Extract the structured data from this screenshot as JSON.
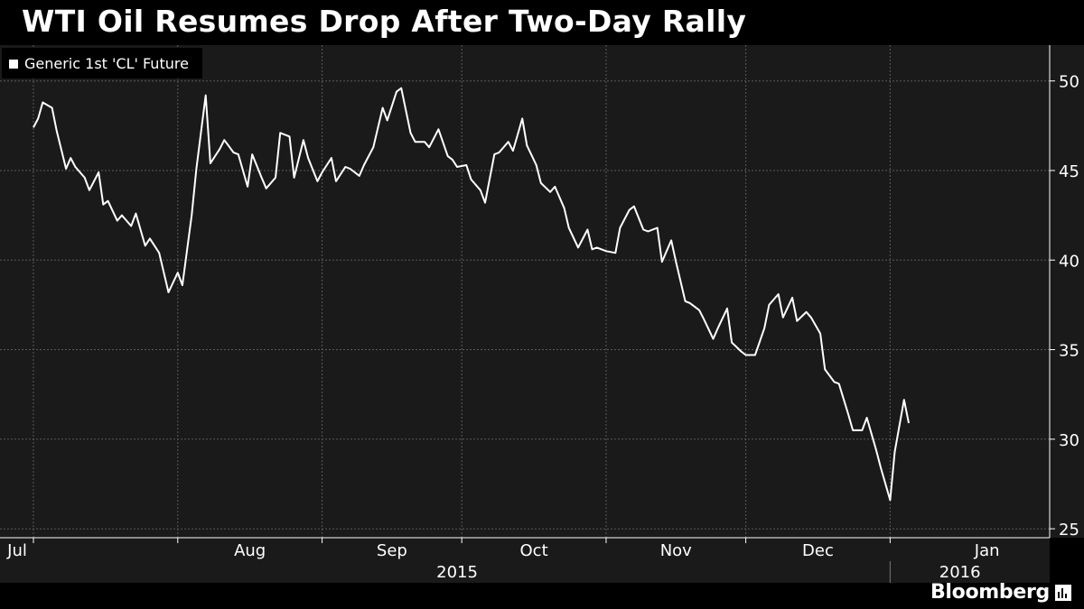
{
  "title": "WTI Oil Resumes Drop After Two-Day Rally",
  "brand": "Bloomberg",
  "colors": {
    "background": "#000000",
    "plot_background": "#1a1a1a",
    "line": "#ffffff",
    "grid": "#5a5a5a",
    "text": "#ffffff"
  },
  "chart_data": {
    "type": "line",
    "title": "WTI Oil Resumes Drop After Two-Day Rally",
    "grid": true,
    "legend_position": "top-left",
    "y_axis_position": "right",
    "ylim": [
      24.5,
      52
    ],
    "yticks": [
      25,
      30,
      35,
      40,
      45,
      50
    ],
    "xlim": [
      "2015-07-01",
      "2016-01-31"
    ],
    "x_month_ticks": [
      {
        "label": "Jul",
        "date": "2015-07-01"
      },
      {
        "label": "Aug",
        "date": "2015-08-01"
      },
      {
        "label": "Sep",
        "date": "2015-09-01"
      },
      {
        "label": "Oct",
        "date": "2015-10-01"
      },
      {
        "label": "Nov",
        "date": "2015-11-01"
      },
      {
        "label": "Dec",
        "date": "2015-12-01"
      },
      {
        "label": "Jan",
        "date": "2016-01-01"
      }
    ],
    "x_year_labels": [
      {
        "label": "2015",
        "date": "2015-09-30"
      },
      {
        "label": "2016",
        "date": "2016-01-16"
      }
    ],
    "series": [
      {
        "name": "Generic 1st 'CL' Future",
        "color": "#ffffff",
        "points": [
          [
            "2015-07-01",
            47.4
          ],
          [
            "2015-07-02",
            47.9
          ],
          [
            "2015-07-03",
            48.8
          ],
          [
            "2015-07-05",
            48.5
          ],
          [
            "2015-07-06",
            47.2
          ],
          [
            "2015-07-08",
            45.1
          ],
          [
            "2015-07-09",
            45.7
          ],
          [
            "2015-07-10",
            45.2
          ],
          [
            "2015-07-12",
            44.6
          ],
          [
            "2015-07-13",
            43.9
          ],
          [
            "2015-07-15",
            44.9
          ],
          [
            "2015-07-16",
            43.1
          ],
          [
            "2015-07-17",
            43.3
          ],
          [
            "2015-07-19",
            42.2
          ],
          [
            "2015-07-20",
            42.5
          ],
          [
            "2015-07-22",
            41.9
          ],
          [
            "2015-07-23",
            42.6
          ],
          [
            "2015-07-25",
            40.8
          ],
          [
            "2015-07-26",
            41.2
          ],
          [
            "2015-07-28",
            40.4
          ],
          [
            "2015-07-30",
            38.2
          ],
          [
            "2015-08-01",
            39.3
          ],
          [
            "2015-08-02",
            38.6
          ],
          [
            "2015-08-04",
            42.5
          ],
          [
            "2015-08-05",
            45.1
          ],
          [
            "2015-08-07",
            49.2
          ],
          [
            "2015-08-08",
            45.4
          ],
          [
            "2015-08-10",
            46.2
          ],
          [
            "2015-08-11",
            46.7
          ],
          [
            "2015-08-13",
            46.0
          ],
          [
            "2015-08-14",
            45.9
          ],
          [
            "2015-08-16",
            44.1
          ],
          [
            "2015-08-17",
            45.9
          ],
          [
            "2015-08-19",
            44.6
          ],
          [
            "2015-08-20",
            44.0
          ],
          [
            "2015-08-22",
            44.6
          ],
          [
            "2015-08-23",
            47.1
          ],
          [
            "2015-08-25",
            46.9
          ],
          [
            "2015-08-26",
            44.6
          ],
          [
            "2015-08-28",
            46.7
          ],
          [
            "2015-08-29",
            45.7
          ],
          [
            "2015-08-31",
            44.4
          ],
          [
            "2015-09-01",
            44.9
          ],
          [
            "2015-09-03",
            45.7
          ],
          [
            "2015-09-04",
            44.4
          ],
          [
            "2015-09-06",
            45.2
          ],
          [
            "2015-09-07",
            45.1
          ],
          [
            "2015-09-09",
            44.7
          ],
          [
            "2015-09-10",
            45.3
          ],
          [
            "2015-09-12",
            46.3
          ],
          [
            "2015-09-14",
            48.5
          ],
          [
            "2015-09-15",
            47.8
          ],
          [
            "2015-09-17",
            49.4
          ],
          [
            "2015-09-18",
            49.6
          ],
          [
            "2015-09-20",
            47.1
          ],
          [
            "2015-09-21",
            46.6
          ],
          [
            "2015-09-23",
            46.6
          ],
          [
            "2015-09-24",
            46.3
          ],
          [
            "2015-09-26",
            47.3
          ],
          [
            "2015-09-28",
            45.8
          ],
          [
            "2015-09-29",
            45.6
          ],
          [
            "2015-09-30",
            45.2
          ],
          [
            "2015-10-02",
            45.3
          ],
          [
            "2015-10-03",
            44.5
          ],
          [
            "2015-10-05",
            43.9
          ],
          [
            "2015-10-06",
            43.2
          ],
          [
            "2015-10-08",
            45.9
          ],
          [
            "2015-10-09",
            46.0
          ],
          [
            "2015-10-11",
            46.6
          ],
          [
            "2015-10-12",
            46.1
          ],
          [
            "2015-10-14",
            47.9
          ],
          [
            "2015-10-15",
            46.4
          ],
          [
            "2015-10-17",
            45.3
          ],
          [
            "2015-10-18",
            44.3
          ],
          [
            "2015-10-20",
            43.8
          ],
          [
            "2015-10-21",
            44.1
          ],
          [
            "2015-10-23",
            42.9
          ],
          [
            "2015-10-24",
            41.8
          ],
          [
            "2015-10-26",
            40.7
          ],
          [
            "2015-10-28",
            41.7
          ],
          [
            "2015-10-29",
            40.6
          ],
          [
            "2015-10-30",
            40.7
          ],
          [
            "2015-11-01",
            40.5
          ],
          [
            "2015-11-03",
            40.4
          ],
          [
            "2015-11-04",
            41.8
          ],
          [
            "2015-11-06",
            42.8
          ],
          [
            "2015-11-07",
            43.0
          ],
          [
            "2015-11-09",
            41.7
          ],
          [
            "2015-11-10",
            41.6
          ],
          [
            "2015-11-12",
            41.8
          ],
          [
            "2015-11-13",
            39.9
          ],
          [
            "2015-11-15",
            41.1
          ],
          [
            "2015-11-16",
            39.9
          ],
          [
            "2015-11-18",
            37.7
          ],
          [
            "2015-11-19",
            37.6
          ],
          [
            "2015-11-21",
            37.2
          ],
          [
            "2015-11-22",
            36.7
          ],
          [
            "2015-11-24",
            35.6
          ],
          [
            "2015-11-25",
            36.2
          ],
          [
            "2015-11-27",
            37.3
          ],
          [
            "2015-11-28",
            35.4
          ],
          [
            "2015-11-30",
            34.9
          ],
          [
            "2015-12-01",
            34.7
          ],
          [
            "2015-12-03",
            34.7
          ],
          [
            "2015-12-05",
            36.2
          ],
          [
            "2015-12-06",
            37.5
          ],
          [
            "2015-12-08",
            38.1
          ],
          [
            "2015-12-09",
            36.8
          ],
          [
            "2015-12-11",
            37.9
          ],
          [
            "2015-12-12",
            36.6
          ],
          [
            "2015-12-14",
            37.1
          ],
          [
            "2015-12-15",
            36.8
          ],
          [
            "2015-12-17",
            35.9
          ],
          [
            "2015-12-18",
            33.9
          ],
          [
            "2015-12-20",
            33.2
          ],
          [
            "2015-12-21",
            33.1
          ],
          [
            "2015-12-23",
            31.4
          ],
          [
            "2015-12-24",
            30.5
          ],
          [
            "2015-12-26",
            30.5
          ],
          [
            "2015-12-27",
            31.2
          ],
          [
            "2015-12-29",
            29.4
          ],
          [
            "2015-12-30",
            28.4
          ],
          [
            "2016-01-01",
            26.6
          ],
          [
            "2016-01-02",
            29.3
          ],
          [
            "2016-01-04",
            32.2
          ],
          [
            "2016-01-05",
            30.9
          ]
        ]
      }
    ]
  }
}
